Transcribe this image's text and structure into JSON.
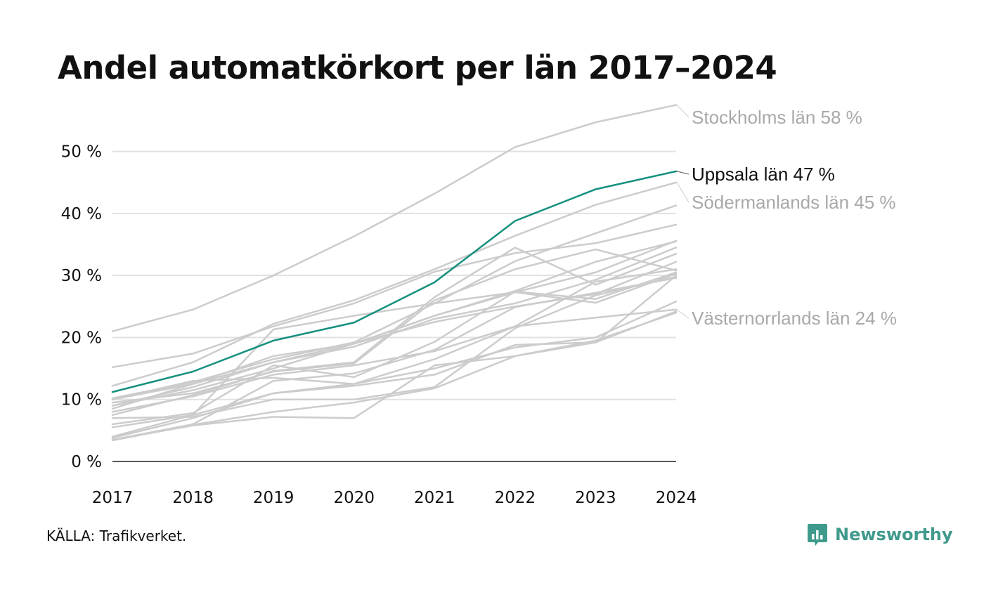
{
  "title": "Andel automatkörkort per län 2017–2024",
  "source": "KÄLLA: Trafikverket.",
  "brand": {
    "name": "Newsworthy",
    "icon": "bar-chart-icon"
  },
  "colors": {
    "highlight": "#15907f",
    "label_highlight": "#111111",
    "other": "#cccccc",
    "label_other": "#a9a9a9",
    "grid": "#e1e1e1",
    "axis": "#222222",
    "brand": "#3f9a8c"
  },
  "chart_data": {
    "type": "line",
    "title": "Andel automatkörkort per län 2017–2024",
    "xlabel": "",
    "ylabel": "",
    "x": [
      2017,
      2018,
      2019,
      2020,
      2021,
      2022,
      2023,
      2024
    ],
    "ylim": [
      0,
      58
    ],
    "yticks": [
      0,
      10,
      20,
      30,
      40,
      50
    ],
    "ytick_labels": [
      "0 %",
      "10 %",
      "20 %",
      "30 %",
      "40 %",
      "50 %"
    ],
    "xtick_labels": [
      "2017",
      "2018",
      "2019",
      "2020",
      "2021",
      "2022",
      "2023",
      "2024"
    ],
    "grid": true,
    "series": [
      {
        "name": "Stockholms län",
        "label": "Stockholms län 58 %",
        "values": [
          21.0,
          24.5,
          30.0,
          36.3,
          43.2,
          50.7,
          54.7,
          57.5
        ]
      },
      {
        "name": "Uppsala län",
        "label": "Uppsala län 47 %",
        "highlight": true,
        "values": [
          11.2,
          14.5,
          19.5,
          22.4,
          28.9,
          38.8,
          43.9,
          46.8
        ]
      },
      {
        "name": "Södermanlands län",
        "label": "Södermanlands län 45 %",
        "values": [
          12.2,
          16.0,
          22.2,
          26.0,
          31.0,
          36.4,
          41.4,
          45.0
        ]
      },
      {
        "name": "Västernorrlands län",
        "label": "Västernorrlands län 24 %",
        "values": [
          8.0,
          10.5,
          14.0,
          15.5,
          17.8,
          21.8,
          23.2,
          24.5
        ]
      },
      {
        "name": "",
        "values": [
          15.2,
          17.4,
          21.8,
          25.5,
          30.6,
          33.6,
          35.2,
          38.2
        ]
      },
      {
        "name": "",
        "values": [
          10.2,
          12.8,
          16.5,
          19.2,
          25.5,
          32.3,
          36.8,
          41.3
        ]
      },
      {
        "name": "",
        "values": [
          9.0,
          12.0,
          16.0,
          19.0,
          23.5,
          27.3,
          30.5,
          35.6
        ]
      },
      {
        "name": "",
        "values": [
          8.5,
          12.5,
          17.0,
          19.0,
          23.5,
          27.5,
          32.2,
          35.5
        ]
      },
      {
        "name": "",
        "values": [
          10.0,
          12.5,
          16.0,
          18.5,
          23.0,
          25.5,
          29.3,
          34.5
        ]
      },
      {
        "name": "",
        "values": [
          7.5,
          10.7,
          14.6,
          16.0,
          26.5,
          34.5,
          28.5,
          33.5
        ]
      },
      {
        "name": "",
        "values": [
          9.0,
          11.5,
          15.0,
          19.0,
          22.5,
          25.0,
          27.0,
          32.2
        ]
      },
      {
        "name": "",
        "values": [
          10.0,
          13.0,
          13.5,
          12.5,
          16.5,
          21.8,
          29.0,
          31.0
        ]
      },
      {
        "name": "",
        "values": [
          9.5,
          11.0,
          14.5,
          15.8,
          26.0,
          31.0,
          34.2,
          30.8
        ]
      },
      {
        "name": "",
        "values": [
          6.0,
          7.8,
          15.5,
          13.6,
          19.3,
          27.4,
          26.2,
          30.5
        ]
      },
      {
        "name": "",
        "values": [
          4.0,
          7.5,
          21.3,
          23.5,
          25.5,
          27.3,
          25.6,
          30.3
        ]
      },
      {
        "name": "",
        "values": [
          3.8,
          7.0,
          11.0,
          12.2,
          14.0,
          18.8,
          19.2,
          30.0
        ]
      },
      {
        "name": "",
        "values": [
          3.5,
          6.0,
          13.0,
          14.2,
          18.0,
          24.9,
          27.2,
          29.6
        ]
      },
      {
        "name": "",
        "values": [
          7.0,
          7.2,
          10.0,
          10.0,
          12.0,
          21.5,
          26.8,
          29.8
        ]
      },
      {
        "name": "",
        "values": [
          5.5,
          7.5,
          11.0,
          12.5,
          15.0,
          18.4,
          20.0,
          25.8
        ]
      },
      {
        "name": "",
        "values": [
          3.5,
          5.8,
          7.2,
          7.0,
          15.5,
          17.0,
          19.5,
          24.0
        ]
      },
      {
        "name": "",
        "values": [
          3.4,
          5.9,
          8.0,
          9.5,
          11.8,
          17.0,
          19.2,
          24.2
        ]
      }
    ]
  }
}
